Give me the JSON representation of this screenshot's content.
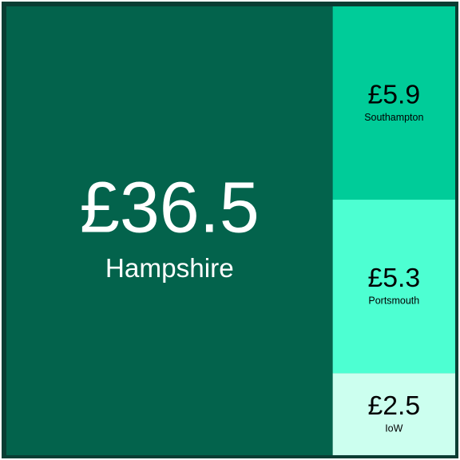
{
  "chart_data": {
    "type": "treemap",
    "categories": [
      "Hampshire",
      "Southampton",
      "Portsmouth",
      "IoW"
    ],
    "values": [
      36.5,
      5.9,
      5.3,
      2.5
    ],
    "value_labels": [
      "£36.5",
      "£5.9",
      "£5.3",
      "£2.5"
    ],
    "colors": [
      "#03634c",
      "#00cc99",
      "#4dffd2",
      "#ccffef"
    ],
    "text_colors": [
      "#ffffff",
      "#000000",
      "#000000",
      "#000000"
    ]
  }
}
